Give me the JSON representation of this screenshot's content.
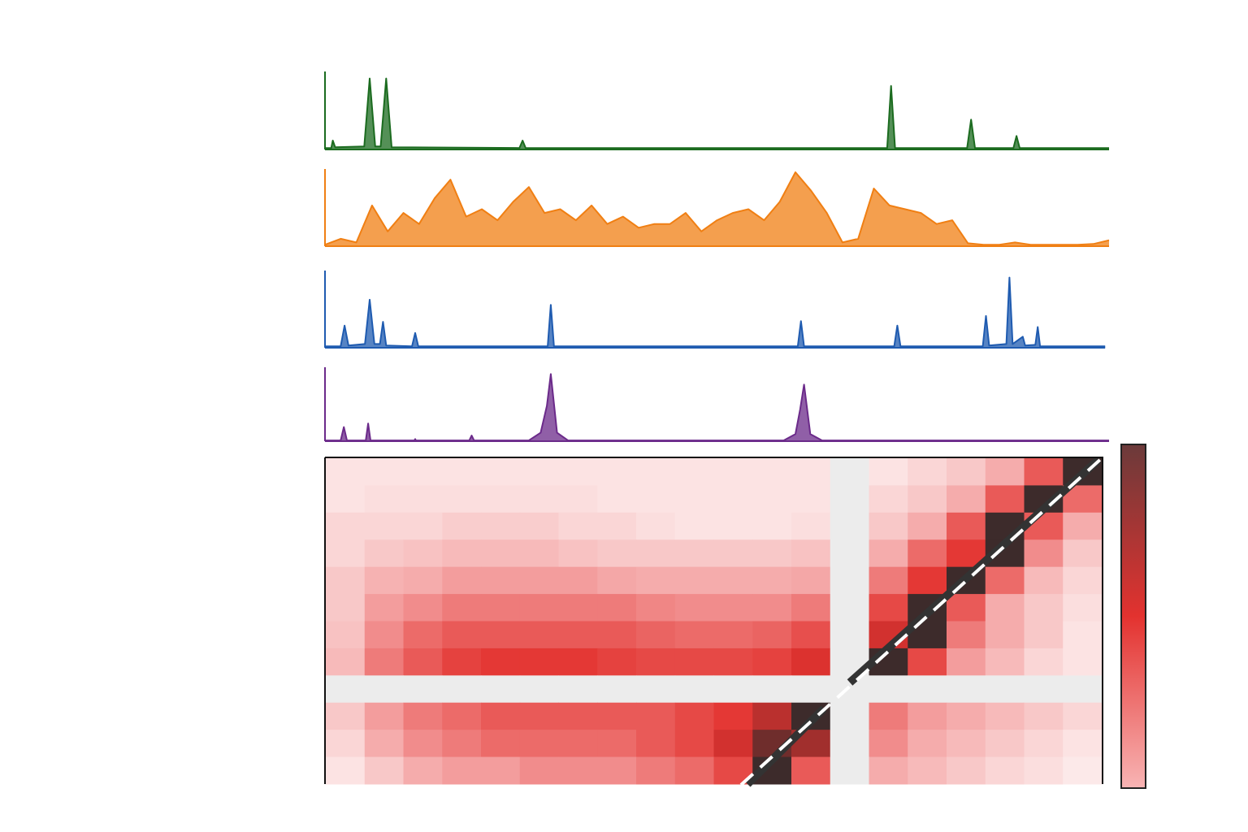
{
  "chart_data": [
    {
      "type": "area",
      "color": "#1b6b1f",
      "ylim": [
        0,
        1
      ],
      "x": [
        0,
        0.8,
        1.0,
        1.3,
        5.0,
        5.7,
        6.4,
        7.1,
        7.8,
        8.5,
        24.8,
        25.2,
        25.6,
        71.7,
        72.2,
        72.7,
        81.9,
        82.4,
        82.9,
        87.8,
        88.2,
        88.6,
        100
      ],
      "values": [
        0.02,
        0.02,
        0.12,
        0.03,
        0.04,
        0.95,
        0.04,
        0.04,
        0.95,
        0.03,
        0.02,
        0.12,
        0.02,
        0.02,
        0.85,
        0.02,
        0.02,
        0.4,
        0.02,
        0.02,
        0.18,
        0.02,
        0.02
      ]
    },
    {
      "type": "area",
      "color": "#f07f13",
      "ylim": [
        0,
        1
      ],
      "x": [
        0,
        2,
        4,
        6,
        8,
        10,
        12,
        14,
        16,
        18,
        20,
        22,
        24,
        26,
        28,
        30,
        32,
        34,
        36,
        38,
        40,
        42,
        44,
        46,
        48,
        50,
        52,
        54,
        56,
        58,
        60,
        62,
        64,
        66,
        68,
        70,
        72,
        74,
        76,
        78,
        80,
        82,
        84,
        86,
        88,
        90,
        92,
        94,
        96,
        98,
        100
      ],
      "values": [
        0.02,
        0.1,
        0.05,
        0.55,
        0.2,
        0.45,
        0.3,
        0.65,
        0.9,
        0.4,
        0.5,
        0.35,
        0.6,
        0.8,
        0.45,
        0.5,
        0.35,
        0.55,
        0.3,
        0.4,
        0.25,
        0.3,
        0.3,
        0.45,
        0.2,
        0.35,
        0.45,
        0.5,
        0.35,
        0.6,
        1.0,
        0.75,
        0.45,
        0.05,
        0.1,
        0.78,
        0.55,
        0.5,
        0.45,
        0.3,
        0.35,
        0.04,
        0.02,
        0.02,
        0.05,
        0.02,
        0.02,
        0.02,
        0.02,
        0.03,
        0.08
      ]
    },
    {
      "type": "area",
      "color": "#1f5bb0",
      "ylim": [
        0,
        1
      ],
      "x": [
        0,
        2.0,
        2.5,
        3.0,
        5.1,
        5.7,
        6.3,
        7.0,
        7.4,
        7.8,
        11.1,
        11.5,
        11.9,
        28.4,
        28.8,
        29.2,
        60.3,
        60.7,
        61.1,
        72.6,
        73.0,
        73.4,
        83.9,
        84.3,
        84.7,
        86.9,
        87.3,
        87.7,
        89.0,
        89.3,
        90.6,
        90.9,
        91.2,
        99.5
      ],
      "values": [
        0.02,
        0.02,
        0.3,
        0.03,
        0.05,
        0.65,
        0.05,
        0.05,
        0.35,
        0.03,
        0.02,
        0.2,
        0.02,
        0.02,
        0.58,
        0.02,
        0.02,
        0.36,
        0.02,
        0.02,
        0.3,
        0.02,
        0.02,
        0.43,
        0.03,
        0.05,
        0.95,
        0.05,
        0.15,
        0.03,
        0.04,
        0.28,
        0.02,
        0.02
      ]
    },
    {
      "type": "area",
      "color": "#6b2a8a",
      "ylim": [
        0,
        1
      ],
      "x": [
        0,
        2.0,
        2.4,
        2.8,
        5.2,
        5.5,
        5.8,
        11.4,
        11.5,
        11.6,
        18.4,
        18.7,
        19.0,
        26.0,
        27.5,
        28.3,
        28.8,
        29.6,
        31.0,
        58.5,
        60.0,
        60.6,
        61.1,
        61.9,
        63.4,
        100
      ],
      "values": [
        0.01,
        0.01,
        0.2,
        0.01,
        0.01,
        0.25,
        0.01,
        0.01,
        0.03,
        0.01,
        0.01,
        0.08,
        0.01,
        0.01,
        0.12,
        0.5,
        0.95,
        0.12,
        0.01,
        0.01,
        0.1,
        0.45,
        0.8,
        0.1,
        0.01,
        0.01
      ]
    },
    {
      "type": "heatmap",
      "colors": [
        "#ffffff",
        "#f4a3a3",
        "#e3322f",
        "#3d2b2b"
      ],
      "values": [
        [
          0.1,
          0.1,
          0.1,
          0.1,
          0.1,
          0.1,
          0.1,
          0.1,
          0.1,
          0.1,
          0.1,
          0.1,
          0.1,
          null,
          0.1,
          0.15,
          0.2,
          0.3,
          0.55,
          1.0
        ],
        [
          0.1,
          0.12,
          0.12,
          0.12,
          0.12,
          0.12,
          0.12,
          0.1,
          0.1,
          0.1,
          0.1,
          0.1,
          0.1,
          null,
          0.15,
          0.2,
          0.3,
          0.55,
          1.0,
          0.5
        ],
        [
          0.15,
          0.15,
          0.15,
          0.18,
          0.18,
          0.18,
          0.15,
          0.15,
          0.12,
          0.1,
          0.1,
          0.1,
          0.12,
          null,
          0.2,
          0.3,
          0.55,
          1.0,
          0.55,
          0.3
        ],
        [
          0.15,
          0.2,
          0.22,
          0.25,
          0.25,
          0.25,
          0.22,
          0.2,
          0.2,
          0.2,
          0.2,
          0.2,
          0.22,
          null,
          0.3,
          0.5,
          0.65,
          1.0,
          0.4,
          0.2
        ],
        [
          0.2,
          0.28,
          0.3,
          0.35,
          0.35,
          0.35,
          0.35,
          0.32,
          0.3,
          0.3,
          0.3,
          0.3,
          0.32,
          null,
          0.45,
          0.65,
          1.0,
          0.5,
          0.25,
          0.15
        ],
        [
          0.2,
          0.35,
          0.4,
          0.45,
          0.45,
          0.45,
          0.45,
          0.45,
          0.42,
          0.4,
          0.4,
          0.4,
          0.45,
          null,
          0.6,
          1.0,
          0.55,
          0.3,
          0.2,
          0.12
        ],
        [
          0.22,
          0.4,
          0.5,
          0.55,
          0.55,
          0.55,
          0.55,
          0.55,
          0.52,
          0.5,
          0.5,
          0.52,
          0.58,
          null,
          0.7,
          1.0,
          0.45,
          0.3,
          0.2,
          0.1
        ],
        [
          0.25,
          0.45,
          0.55,
          0.62,
          0.65,
          0.65,
          0.65,
          0.62,
          0.6,
          0.6,
          0.6,
          0.62,
          0.68,
          null,
          1.0,
          0.6,
          0.35,
          0.25,
          0.15,
          0.1
        ],
        [
          null,
          null,
          null,
          null,
          null,
          null,
          null,
          null,
          null,
          null,
          null,
          null,
          null,
          null,
          null,
          null,
          null,
          null,
          null,
          null
        ],
        [
          0.2,
          0.35,
          0.45,
          0.5,
          0.55,
          0.55,
          0.55,
          0.55,
          0.55,
          0.6,
          0.65,
          0.75,
          1.0,
          null,
          0.45,
          0.35,
          0.3,
          0.25,
          0.2,
          0.15
        ],
        [
          0.15,
          0.3,
          0.4,
          0.45,
          0.5,
          0.5,
          0.5,
          0.5,
          0.55,
          0.6,
          0.7,
          0.9,
          0.8,
          null,
          0.4,
          0.3,
          0.25,
          0.2,
          0.15,
          0.1
        ],
        [
          0.1,
          0.2,
          0.3,
          0.35,
          0.35,
          0.4,
          0.4,
          0.4,
          0.45,
          0.5,
          0.6,
          1.0,
          0.55,
          null,
          0.3,
          0.25,
          0.2,
          0.15,
          0.12,
          0.08
        ]
      ]
    }
  ]
}
